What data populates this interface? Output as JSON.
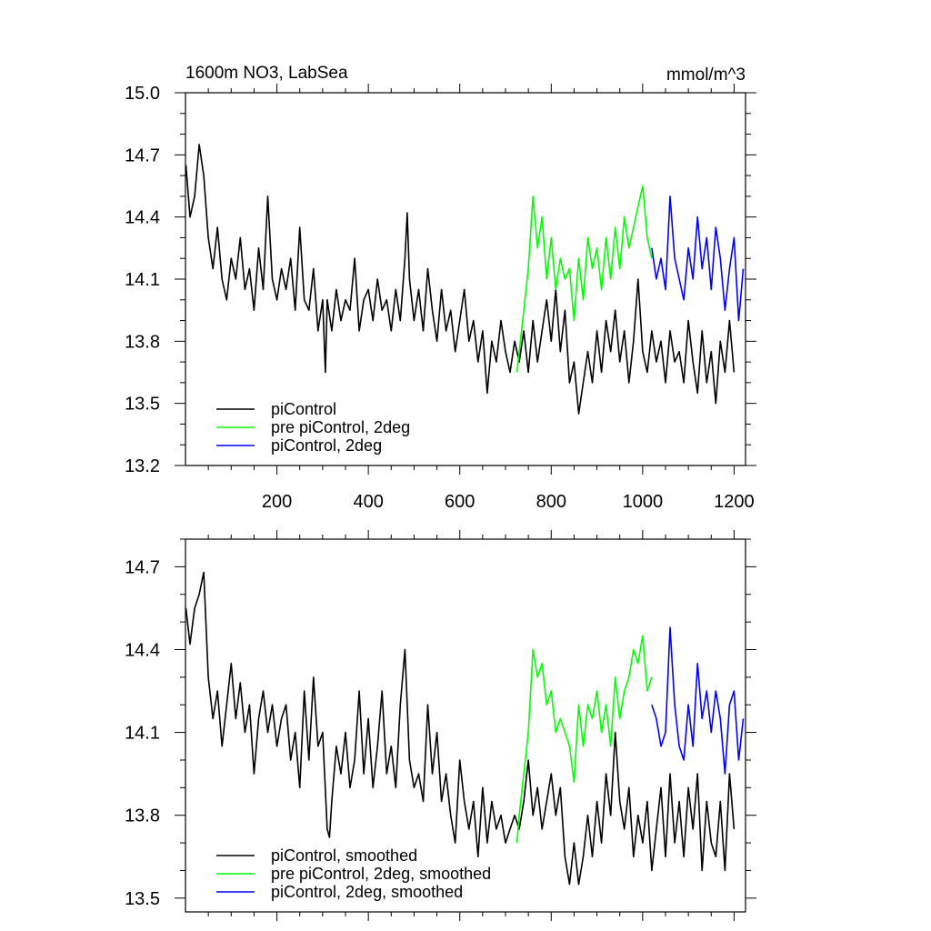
{
  "chart_data": [
    {
      "type": "line",
      "title": "1600m NO3, LabSea",
      "units": "mmol/m^3",
      "xlim": [
        0,
        1225
      ],
      "ylim": [
        13.2,
        15.0
      ],
      "xticks": [
        "200",
        "400",
        "600",
        "800",
        "1000",
        "1200"
      ],
      "yticks": [
        "13.2",
        "13.5",
        "13.8",
        "14.1",
        "14.4",
        "14.7",
        "15.0"
      ],
      "legend": "bottom-left",
      "series": [
        {
          "name": "piControl",
          "color": "#000000",
          "x": [
            1,
            10,
            20,
            30,
            40,
            50,
            60,
            70,
            80,
            90,
            100,
            110,
            120,
            130,
            140,
            150,
            160,
            170,
            180,
            190,
            200,
            210,
            220,
            230,
            240,
            250,
            260,
            270,
            280,
            290,
            300,
            306,
            310,
            320,
            330,
            340,
            350,
            360,
            370,
            380,
            390,
            400,
            410,
            420,
            430,
            440,
            450,
            460,
            470,
            480,
            485,
            490,
            500,
            510,
            520,
            530,
            540,
            550,
            560,
            570,
            580,
            590,
            600,
            610,
            620,
            630,
            640,
            650,
            660,
            670,
            680,
            690,
            700,
            710,
            720,
            730,
            740,
            750,
            760,
            770,
            780,
            790,
            800,
            810,
            820,
            830,
            840,
            850,
            860,
            870,
            880,
            890,
            900,
            910,
            920,
            930,
            940,
            950,
            960,
            970,
            980,
            990,
            1000,
            1010,
            1020,
            1030,
            1040,
            1050,
            1060,
            1070,
            1080,
            1090,
            1100,
            1110,
            1120,
            1130,
            1140,
            1150,
            1160,
            1170,
            1180,
            1190,
            1200
          ],
          "y": [
            14.65,
            14.4,
            14.5,
            14.75,
            14.6,
            14.3,
            14.15,
            14.35,
            14.1,
            14.0,
            14.2,
            14.1,
            14.3,
            14.05,
            14.15,
            13.95,
            14.25,
            14.05,
            14.5,
            14.1,
            14.0,
            14.15,
            14.05,
            14.2,
            13.95,
            14.35,
            14.0,
            13.95,
            14.15,
            13.85,
            14.0,
            13.65,
            14.0,
            13.85,
            14.05,
            13.9,
            14.0,
            13.95,
            14.2,
            13.85,
            14.0,
            14.05,
            13.9,
            14.1,
            13.95,
            14.0,
            13.85,
            14.05,
            13.9,
            14.2,
            14.42,
            14.1,
            13.9,
            14.05,
            13.85,
            14.15,
            13.95,
            13.8,
            14.05,
            13.85,
            13.95,
            13.75,
            13.9,
            14.05,
            13.8,
            13.9,
            13.7,
            13.85,
            13.55,
            13.8,
            13.7,
            13.9,
            13.75,
            13.65,
            13.8,
            13.7,
            13.85,
            13.65,
            13.9,
            13.7,
            13.85,
            14.0,
            13.8,
            14.05,
            13.75,
            13.95,
            13.6,
            13.7,
            13.45,
            13.6,
            13.75,
            13.6,
            13.85,
            13.65,
            13.9,
            13.75,
            13.95,
            13.7,
            13.85,
            13.6,
            13.8,
            14.1,
            13.75,
            13.65,
            13.85,
            13.7,
            13.8,
            13.6,
            13.85,
            13.7,
            13.75,
            13.6,
            13.9,
            13.7,
            13.55,
            13.85,
            13.6,
            13.75,
            13.5,
            13.8,
            13.65,
            13.9,
            13.65
          ]
        },
        {
          "name": "pre piControl, 2deg",
          "color": "#00ff00",
          "x": [
            725,
            730,
            740,
            750,
            760,
            770,
            780,
            790,
            800,
            810,
            820,
            830,
            840,
            850,
            860,
            870,
            880,
            890,
            900,
            910,
            920,
            930,
            940,
            950,
            960,
            970,
            980,
            990,
            1000,
            1010,
            1020
          ],
          "y": [
            13.65,
            13.75,
            13.95,
            14.15,
            14.5,
            14.25,
            14.4,
            14.1,
            14.3,
            14.05,
            14.2,
            14.1,
            14.15,
            13.9,
            14.2,
            14.0,
            14.3,
            14.15,
            14.25,
            14.05,
            14.3,
            14.1,
            14.35,
            14.15,
            14.4,
            14.25,
            14.35,
            14.45,
            14.55,
            14.3,
            14.2
          ]
        },
        {
          "name": "piControl, 2deg",
          "color": "#0000ff",
          "x": [
            1020,
            1030,
            1040,
            1050,
            1060,
            1070,
            1080,
            1090,
            1100,
            1110,
            1120,
            1130,
            1140,
            1150,
            1160,
            1170,
            1180,
            1190,
            1200,
            1210,
            1220
          ],
          "y": [
            14.25,
            14.1,
            14.2,
            14.05,
            14.5,
            14.2,
            14.1,
            14.0,
            14.25,
            14.1,
            14.4,
            14.15,
            14.3,
            14.05,
            14.35,
            14.2,
            13.95,
            14.15,
            14.3,
            13.9,
            14.15
          ]
        }
      ]
    },
    {
      "type": "line",
      "title": "",
      "xlim": [
        0,
        1225
      ],
      "ylim": [
        13.45,
        14.8
      ],
      "yticks": [
        "13.5",
        "13.8",
        "14.1",
        "14.4",
        "14.7"
      ],
      "legend": "bottom-left",
      "series": [
        {
          "name": "piControl, smoothed",
          "color": "#000000",
          "x": [
            1,
            10,
            20,
            30,
            40,
            50,
            60,
            70,
            80,
            90,
            100,
            110,
            120,
            130,
            140,
            150,
            160,
            170,
            180,
            190,
            200,
            210,
            220,
            230,
            240,
            250,
            260,
            270,
            280,
            290,
            300,
            310,
            315,
            320,
            330,
            340,
            350,
            360,
            370,
            380,
            390,
            400,
            410,
            420,
            430,
            440,
            450,
            460,
            470,
            480,
            490,
            500,
            510,
            520,
            530,
            540,
            550,
            560,
            570,
            580,
            590,
            600,
            610,
            620,
            630,
            640,
            650,
            660,
            670,
            680,
            690,
            700,
            710,
            720,
            730,
            740,
            750,
            760,
            770,
            780,
            790,
            800,
            810,
            820,
            830,
            840,
            850,
            860,
            870,
            880,
            890,
            900,
            910,
            920,
            930,
            940,
            950,
            960,
            970,
            980,
            990,
            1000,
            1010,
            1020,
            1030,
            1040,
            1050,
            1060,
            1070,
            1080,
            1090,
            1100,
            1110,
            1120,
            1130,
            1140,
            1150,
            1160,
            1170,
            1180,
            1190,
            1200
          ],
          "y": [
            14.55,
            14.42,
            14.55,
            14.6,
            14.68,
            14.3,
            14.15,
            14.25,
            14.05,
            14.2,
            14.35,
            14.15,
            14.28,
            14.1,
            14.2,
            13.95,
            14.15,
            14.25,
            14.1,
            14.2,
            14.05,
            14.15,
            14.2,
            14.0,
            14.1,
            13.9,
            14.25,
            14.0,
            14.3,
            14.05,
            14.1,
            13.75,
            13.72,
            13.85,
            14.05,
            13.95,
            14.1,
            13.9,
            14.0,
            14.25,
            13.95,
            14.15,
            13.9,
            14.05,
            14.25,
            13.95,
            14.05,
            13.9,
            14.2,
            14.4,
            14.0,
            13.9,
            13.95,
            13.85,
            14.2,
            13.95,
            14.1,
            13.85,
            13.95,
            13.8,
            13.7,
            14.0,
            13.85,
            13.75,
            13.85,
            13.65,
            13.9,
            13.7,
            13.85,
            13.75,
            13.8,
            13.7,
            13.75,
            13.8,
            13.75,
            13.85,
            14.0,
            13.8,
            13.9,
            13.75,
            13.85,
            13.95,
            13.8,
            13.9,
            13.65,
            13.55,
            13.7,
            13.55,
            13.65,
            13.8,
            13.65,
            13.85,
            13.7,
            13.95,
            13.8,
            14.1,
            13.85,
            13.75,
            13.9,
            13.65,
            13.8,
            13.7,
            13.85,
            13.6,
            13.75,
            13.9,
            13.65,
            13.95,
            13.7,
            13.85,
            13.65,
            13.9,
            13.75,
            13.95,
            13.6,
            13.85,
            13.7,
            13.65,
            13.85,
            13.6,
            13.95,
            13.75
          ]
        },
        {
          "name": "pre piControl, 2deg, smoothed",
          "color": "#00ff00",
          "x": [
            725,
            730,
            740,
            750,
            760,
            770,
            780,
            790,
            800,
            810,
            820,
            830,
            840,
            850,
            860,
            870,
            880,
            890,
            900,
            910,
            920,
            930,
            940,
            950,
            960,
            970,
            980,
            990,
            1000,
            1010,
            1020
          ],
          "y": [
            13.7,
            13.8,
            13.95,
            14.1,
            14.4,
            14.3,
            14.35,
            14.2,
            14.25,
            14.1,
            14.15,
            14.1,
            14.05,
            13.92,
            14.2,
            14.05,
            14.2,
            14.15,
            14.25,
            14.1,
            14.2,
            14.05,
            14.3,
            14.15,
            14.25,
            14.3,
            14.4,
            14.35,
            14.45,
            14.25,
            14.3
          ]
        },
        {
          "name": "piControl, 2deg, smoothed",
          "color": "#0000ff",
          "x": [
            1020,
            1030,
            1040,
            1050,
            1060,
            1070,
            1080,
            1090,
            1100,
            1110,
            1120,
            1130,
            1140,
            1150,
            1160,
            1170,
            1180,
            1190,
            1200,
            1210,
            1220
          ],
          "y": [
            14.2,
            14.15,
            14.05,
            14.1,
            14.48,
            14.2,
            14.05,
            14.0,
            14.2,
            14.05,
            14.35,
            14.15,
            14.25,
            14.1,
            14.25,
            14.15,
            13.95,
            14.2,
            14.25,
            14.0,
            14.15
          ]
        }
      ]
    }
  ]
}
